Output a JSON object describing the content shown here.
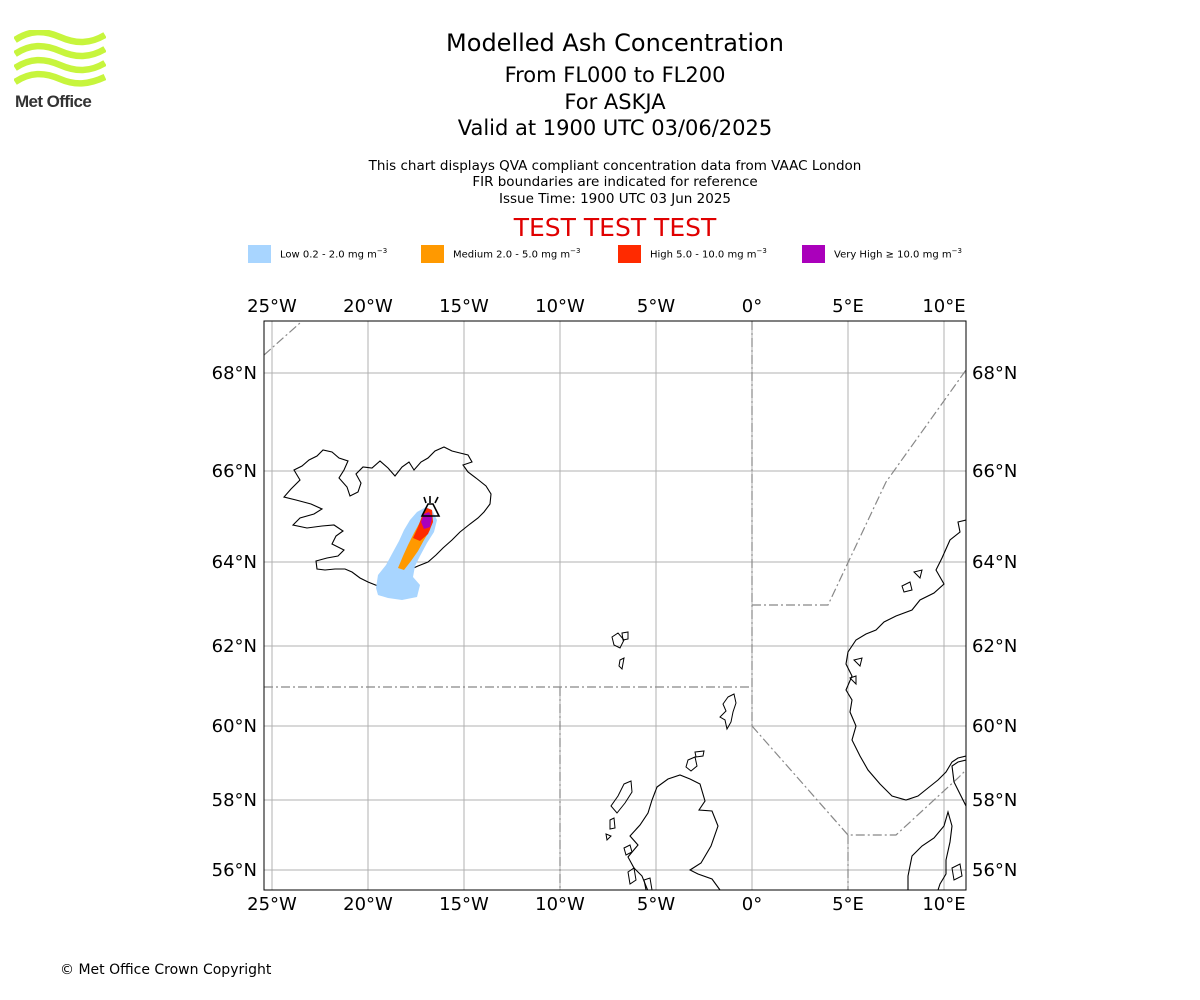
{
  "brand": {
    "logo_text": "Met Office",
    "logo_color": "#c7f53d"
  },
  "header": {
    "title": "Modelled Ash Concentration",
    "levels": "From FL000 to FL200",
    "volcano": "For ASKJA",
    "valid": "Valid at 1900 UTC 03/06/2025",
    "info_line_1": "This chart displays QVA compliant concentration data from VAAC London",
    "info_line_2": "FIR boundaries are indicated for reference",
    "issue_time": "Issue Time: 1900 UTC 03 Jun 2025",
    "test_banner": "TEST TEST TEST"
  },
  "legend": [
    {
      "label": "Low 0.2 - 2.0 mg m",
      "color": "#a8d5ff"
    },
    {
      "label": "Medium 2.0 - 5.0 mg m",
      "color": "#ff9900"
    },
    {
      "label": "High 5.0 - 10.0 mg m",
      "color": "#ff2a00"
    },
    {
      "label": "Very High ≥ 10.0 mg m",
      "color": "#aa00bb"
    }
  ],
  "legend_unit_exponent": "−3",
  "map": {
    "lon_labels": [
      "25°W",
      "20°W",
      "15°W",
      "10°W",
      "5°W",
      "0°",
      "5°E",
      "10°E"
    ],
    "lat_labels": [
      "68°N",
      "66°N",
      "64°N",
      "62°N",
      "60°N",
      "58°N",
      "56°N"
    ],
    "grid": true,
    "volcano_marker": "volcano-icon",
    "colors": {
      "coast": "#000000",
      "fir": "#888888",
      "grid": "#b0b0b0"
    }
  },
  "footer": {
    "copyright": "© Met Office Crown Copyright"
  }
}
